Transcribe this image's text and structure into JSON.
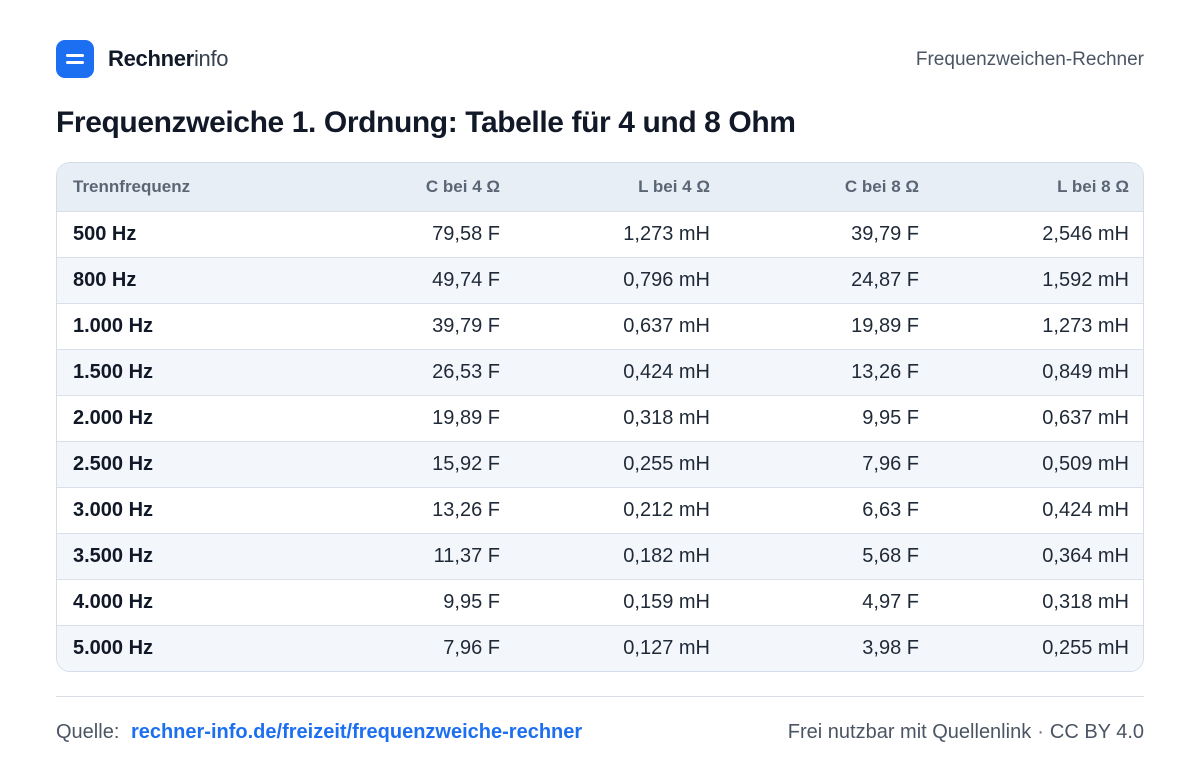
{
  "brand": {
    "name_strong": "Rechner",
    "name_light": "info"
  },
  "header": {
    "right_text": "Frequenzweichen-Rechner"
  },
  "title": "Frequenzweiche 1. Ordnung: Tabelle für 4 und 8 Ohm",
  "table": {
    "headers": [
      "Trennfrequenz",
      "C bei 4 Ω",
      "L bei 4 Ω",
      "C bei 8 Ω",
      "L bei 8 Ω"
    ],
    "rows": [
      [
        "500 Hz",
        "79,58  F",
        "1,273 mH",
        "39,79  F",
        "2,546 mH"
      ],
      [
        "800 Hz",
        "49,74  F",
        "0,796 mH",
        "24,87  F",
        "1,592 mH"
      ],
      [
        "1.000 Hz",
        "39,79  F",
        "0,637 mH",
        "19,89  F",
        "1,273 mH"
      ],
      [
        "1.500 Hz",
        "26,53  F",
        "0,424 mH",
        "13,26  F",
        "0,849 mH"
      ],
      [
        "2.000 Hz",
        "19,89  F",
        "0,318 mH",
        "9,95  F",
        "0,637 mH"
      ],
      [
        "2.500 Hz",
        "15,92  F",
        "0,255 mH",
        "7,96  F",
        "0,509 mH"
      ],
      [
        "3.000 Hz",
        "13,26  F",
        "0,212 mH",
        "6,63  F",
        "0,424 mH"
      ],
      [
        "3.500 Hz",
        "11,37  F",
        "0,182 mH",
        "5,68  F",
        "0,364 mH"
      ],
      [
        "4.000 Hz",
        "9,95  F",
        "0,159 mH",
        "4,97  F",
        "0,318 mH"
      ],
      [
        "5.000 Hz",
        "7,96  F",
        "0,127 mH",
        "3,98  F",
        "0,255 mH"
      ]
    ]
  },
  "footer": {
    "source_label": "Quelle:",
    "source_link": "rechner-info.de/freizeit/frequenzweiche-rechner",
    "license_text": "Frei nutzbar mit Quellenlink",
    "separator": "·",
    "license": "CC BY 4.0"
  },
  "colors": {
    "accent": "#1d6ff2",
    "header_bg": "#e8eef6",
    "row_alt": "#f3f6fa"
  }
}
